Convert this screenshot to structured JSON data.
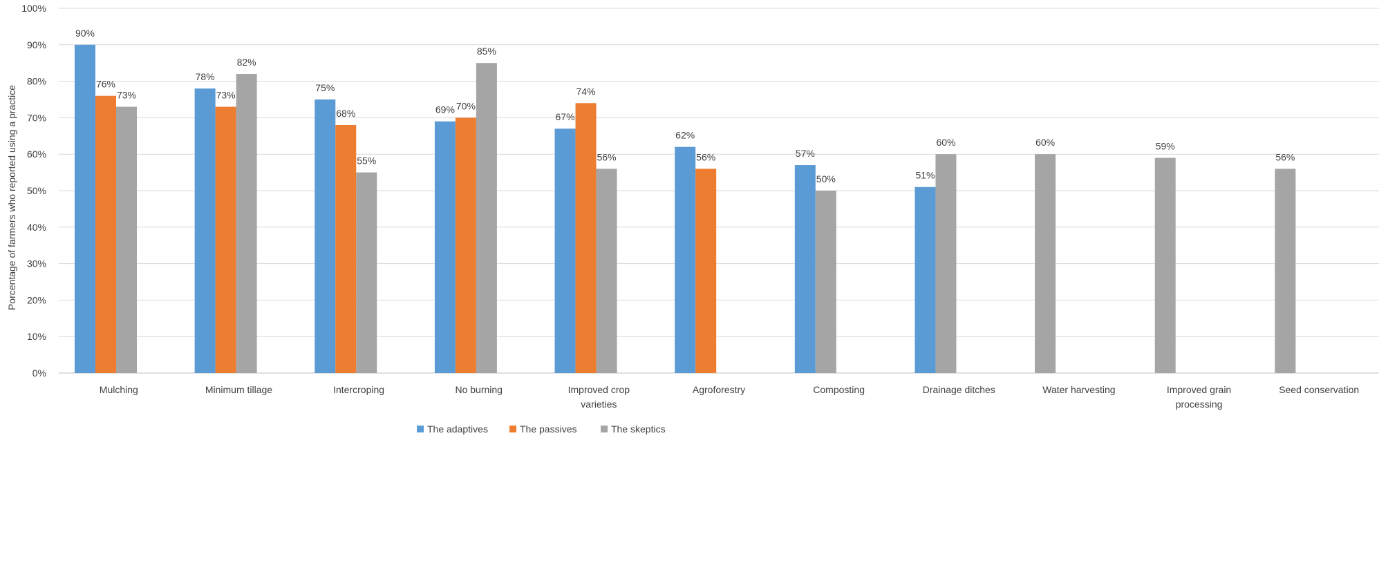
{
  "chart_data": {
    "type": "bar",
    "title": "",
    "xlabel": "",
    "ylabel": "Porcentage of farmers who reported using a practice",
    "ylim": [
      0,
      100
    ],
    "y_ticks": [
      "0%",
      "10%",
      "20%",
      "30%",
      "40%",
      "50%",
      "60%",
      "70%",
      "80%",
      "90%",
      "100%"
    ],
    "grid": true,
    "legend_position": "bottom",
    "categories": [
      [
        "Mulching"
      ],
      [
        "Minimum tillage"
      ],
      [
        "Intercroping"
      ],
      [
        "No burning"
      ],
      [
        "Improved crop",
        "varieties"
      ],
      [
        "Agroforestry"
      ],
      [
        "Composting"
      ],
      [
        "Drainage ditches"
      ],
      [
        "Water harvesting"
      ],
      [
        "Improved grain",
        "processing"
      ],
      [
        "Seed conservation"
      ]
    ],
    "series": [
      {
        "name": "The adaptives",
        "color": "#5b9bd5",
        "values": [
          90,
          78,
          75,
          69,
          67,
          62,
          57,
          null,
          null,
          null,
          null
        ],
        "labels": [
          "90%",
          "78%",
          "75%",
          "69%",
          "67%",
          "62%",
          "57%",
          null,
          null,
          null,
          null
        ]
      },
      {
        "name": "The passives",
        "color": "#ed7d31",
        "values": [
          76,
          73,
          68,
          70,
          74,
          56,
          null,
          null,
          null,
          null,
          null
        ],
        "labels": [
          "76%",
          "73%",
          "68%",
          "70%",
          "74%",
          "56%",
          null,
          null,
          null,
          null,
          null
        ]
      },
      {
        "name": "The skeptics",
        "color": "#a5a5a5",
        "values": [
          73,
          82,
          55,
          85,
          56,
          null,
          50,
          60,
          60,
          59,
          56
        ],
        "labels": [
          "73%",
          "82%",
          "55%",
          "85%",
          "56%",
          null,
          "50%",
          "60%",
          "60%",
          "59%",
          "56%"
        ]
      }
    ],
    "bar_layout": [
      [
        0,
        1,
        2
      ],
      [
        0,
        1,
        2
      ],
      [
        0,
        1,
        2
      ],
      [
        0,
        1,
        2
      ],
      [
        0,
        1,
        2
      ],
      [
        0,
        1
      ],
      [
        0,
        2
      ],
      [
        0,
        2
      ],
      [
        2
      ],
      [
        2
      ],
      [
        2
      ]
    ],
    "drainage_adaptives": {
      "value": 51,
      "label": "51%"
    }
  },
  "colors": {
    "grid": "#d9d9d9",
    "axis": "#bfbfbf",
    "text": "#404040"
  }
}
